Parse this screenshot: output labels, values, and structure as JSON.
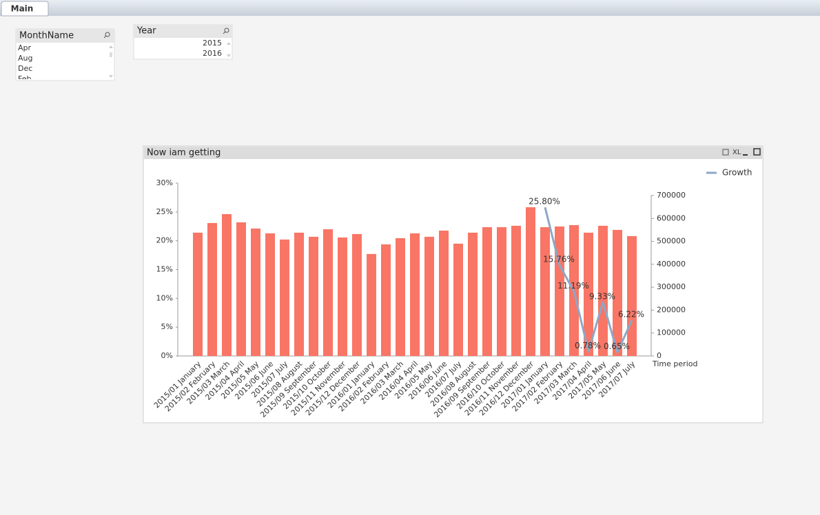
{
  "tabs": [
    "Main"
  ],
  "listboxes": [
    {
      "title": "MonthName",
      "items": [
        "Apr",
        "Aug",
        "Dec",
        "Feb"
      ]
    },
    {
      "title": "Year",
      "items": [
        "2015",
        "2016"
      ]
    }
  ],
  "chart_toolbar": "XL",
  "chart_data": {
    "type": "bar",
    "title": "Now iam getting",
    "x_label": "Time period",
    "categories": [
      "2015/01 January",
      "2015/02 February",
      "2015/03 March",
      "2015/04 April",
      "2015/05 May",
      "2015/06 June",
      "2015/07 July",
      "2015/08 August",
      "2015/09 September",
      "2015/10 October",
      "2015/11 November",
      "2015/12 December",
      "2016/01 January",
      "2016/02 February",
      "2016/03 March",
      "2016/04 April",
      "2016/05 May",
      "2016/06 June",
      "2016/07 July",
      "2016/08 August",
      "2016/09 September",
      "2016/10 October",
      "2016/11 November",
      "2016/12 December",
      "2017/01 January",
      "2017/02 February",
      "2017/03 March",
      "2017/04 April",
      "2017/05 May",
      "2017/06 June",
      "2017/07 July"
    ],
    "series": [
      {
        "type": "bar",
        "axis": "y2",
        "color": "#f97565",
        "values": [
          538000,
          580000,
          619000,
          583000,
          556000,
          535000,
          508000,
          538000,
          520000,
          553000,
          517000,
          532000,
          445000,
          487000,
          514000,
          535000,
          520000,
          547000,
          490000,
          538000,
          562000,
          562000,
          568000,
          649000,
          562000,
          565000,
          571000,
          538000,
          568000,
          550000,
          523000
        ]
      },
      {
        "type": "line",
        "name": "Growth",
        "axis": "y",
        "color": "#8ea7c6",
        "values": [
          null,
          null,
          null,
          null,
          null,
          null,
          null,
          null,
          null,
          null,
          null,
          null,
          null,
          null,
          null,
          null,
          null,
          null,
          null,
          null,
          null,
          null,
          null,
          null,
          25.8,
          15.76,
          11.19,
          0.78,
          9.33,
          0.65,
          6.22
        ],
        "value_labels": [
          null,
          null,
          null,
          null,
          null,
          null,
          null,
          null,
          null,
          null,
          null,
          null,
          null,
          null,
          null,
          null,
          null,
          null,
          null,
          null,
          null,
          null,
          null,
          null,
          "25.80%",
          "15.76%",
          "11.19%",
          "0.78%",
          "9.33%",
          "0.65%",
          "6.22%"
        ]
      }
    ],
    "ylim": [
      0,
      30
    ],
    "yticks": [
      {
        "value": 0,
        "label": "0%"
      },
      {
        "value": 5,
        "label": "5%"
      },
      {
        "value": 10,
        "label": "10%"
      },
      {
        "value": 15,
        "label": "15%"
      },
      {
        "value": 20,
        "label": "20%"
      },
      {
        "value": 25,
        "label": "25%"
      },
      {
        "value": 30,
        "label": "30%"
      }
    ],
    "y2lim": [
      0,
      700000
    ],
    "y2ticks": [
      0,
      100000,
      200000,
      300000,
      400000,
      500000,
      600000,
      700000
    ],
    "legend": "top-right"
  }
}
